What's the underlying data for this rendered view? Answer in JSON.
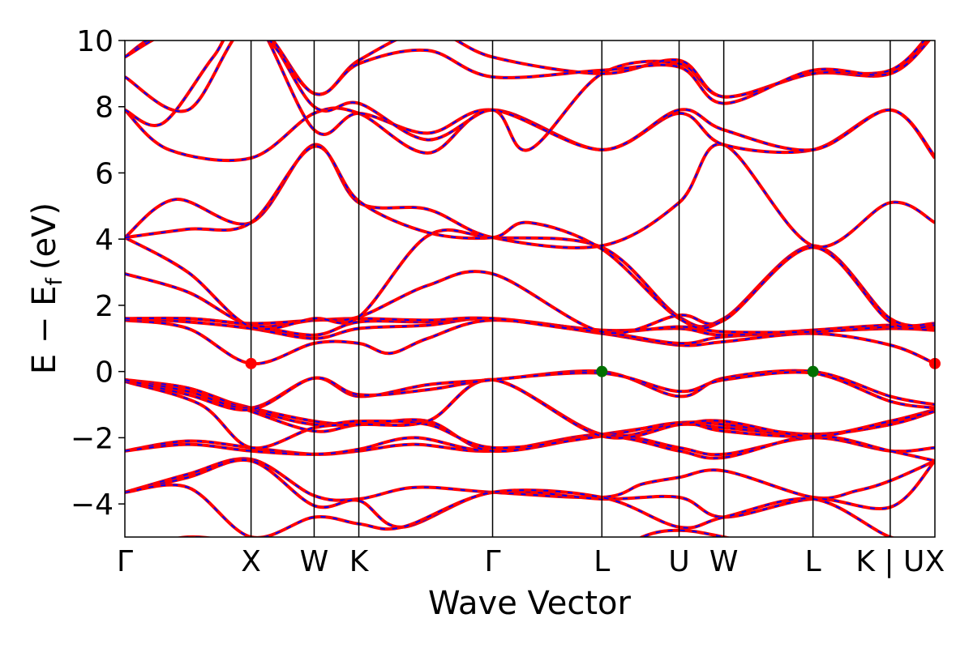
{
  "chart_data": {
    "type": "line",
    "xlabel": "Wave Vector",
    "ylabel": "E − E",
    "ylabel_subscript": "f",
    "ylabel_unit": "(eV)",
    "ylim": [
      -5,
      10
    ],
    "yticks": [
      -4,
      -2,
      0,
      2,
      4,
      6,
      8,
      10
    ],
    "ytick_labels": [
      "−4",
      "−2",
      "0",
      "2",
      "4",
      "6",
      "8",
      "10"
    ],
    "grid": false,
    "kpath": [
      {
        "label": "Γ",
        "x": 0.0
      },
      {
        "label": "X",
        "x": 1.0
      },
      {
        "label": "W",
        "x": 1.5
      },
      {
        "label": "K",
        "x": 1.854
      },
      {
        "label": "Γ",
        "x": 2.914
      },
      {
        "label": "L",
        "x": 3.78
      },
      {
        "label": "U",
        "x": 4.392
      },
      {
        "label": "W",
        "x": 4.746
      },
      {
        "label": "L",
        "x": 5.453
      },
      {
        "label": "K | U",
        "x": 6.065
      },
      {
        "label": "X",
        "x": 6.419
      }
    ],
    "xlim": [
      0,
      6.419
    ],
    "series_style": {
      "primary_color": "#ff0000",
      "overlay_color": "#0000ff"
    },
    "markers": [
      {
        "name": "CBM",
        "color": "#ff0000",
        "points": [
          [
            1.0,
            0.24
          ],
          [
            6.419,
            0.24
          ]
        ]
      },
      {
        "name": "VBM",
        "color": "#007000",
        "points": [
          [
            3.78,
            0.0
          ],
          [
            5.453,
            0.0
          ]
        ]
      }
    ],
    "bands": [
      [
        [
          0,
          -5.5
        ],
        [
          0.5,
          -5.0
        ],
        [
          1.0,
          -5.3
        ],
        [
          1.5,
          -5.9
        ],
        [
          1.854,
          -6.0
        ],
        [
          2.4,
          -6.0
        ],
        [
          2.914,
          -6.0
        ],
        [
          3.78,
          -5.8
        ],
        [
          4.1,
          -5.0
        ],
        [
          4.392,
          -4.8
        ],
        [
          4.746,
          -5.0
        ],
        [
          5.453,
          -5.6
        ],
        [
          6.065,
          -5.4
        ],
        [
          6.419,
          -5.1
        ]
      ],
      [
        [
          0,
          -3.65
        ],
        [
          0.5,
          -3.1
        ],
        [
          1.0,
          -2.65
        ],
        [
          1.5,
          -3.75
        ],
        [
          1.854,
          -3.85
        ],
        [
          2.3,
          -3.5
        ],
        [
          2.914,
          -3.65
        ],
        [
          3.78,
          -3.8
        ],
        [
          4.1,
          -3.4
        ],
        [
          4.392,
          -3.2
        ],
        [
          4.746,
          -3.0
        ],
        [
          5.453,
          -3.8
        ],
        [
          5.8,
          -3.6
        ],
        [
          6.065,
          -3.3
        ],
        [
          6.419,
          -2.7
        ]
      ],
      [
        [
          0,
          -3.65
        ],
        [
          0.5,
          -3.2
        ],
        [
          1.0,
          -2.7
        ],
        [
          1.5,
          -4.05
        ],
        [
          1.854,
          -3.9
        ],
        [
          2.2,
          -4.7
        ],
        [
          2.914,
          -3.65
        ],
        [
          3.78,
          -3.85
        ],
        [
          4.392,
          -3.8
        ],
        [
          4.746,
          -4.4
        ],
        [
          5.453,
          -3.85
        ],
        [
          6.065,
          -4.1
        ],
        [
          6.419,
          -2.7
        ]
      ],
      [
        [
          0,
          -3.65
        ],
        [
          0.5,
          -3.5
        ],
        [
          1.0,
          -5.0
        ],
        [
          1.5,
          -4.4
        ],
        [
          1.854,
          -4.6
        ],
        [
          2.2,
          -4.7
        ],
        [
          2.914,
          -3.65
        ],
        [
          3.78,
          -3.8
        ],
        [
          4.392,
          -4.7
        ],
        [
          4.746,
          -4.4
        ],
        [
          5.453,
          -3.85
        ],
        [
          6.065,
          -5.0
        ],
        [
          6.419,
          -5.2
        ]
      ],
      [
        [
          0,
          -2.4
        ],
        [
          0.5,
          -2.1
        ],
        [
          1.0,
          -2.3
        ],
        [
          1.5,
          -2.5
        ],
        [
          1.854,
          -2.4
        ],
        [
          2.3,
          -2.2
        ],
        [
          2.914,
          -2.4
        ],
        [
          3.78,
          -1.9
        ],
        [
          4.392,
          -2.3
        ],
        [
          4.746,
          -2.5
        ],
        [
          5.453,
          -2.0
        ],
        [
          6.065,
          -2.4
        ],
        [
          6.419,
          -2.3
        ]
      ],
      [
        [
          0,
          -2.4
        ],
        [
          0.5,
          -2.2
        ],
        [
          1.0,
          -2.4
        ],
        [
          1.5,
          -2.5
        ],
        [
          1.854,
          -2.35
        ],
        [
          2.3,
          -2.0
        ],
        [
          2.914,
          -2.4
        ],
        [
          3.78,
          -1.95
        ],
        [
          4.392,
          -2.4
        ],
        [
          4.746,
          -2.6
        ],
        [
          5.453,
          -1.95
        ],
        [
          6.065,
          -2.4
        ],
        [
          6.419,
          -2.7
        ]
      ],
      [
        [
          0,
          -0.25
        ],
        [
          0.5,
          -0.6
        ],
        [
          1.0,
          -1.1
        ],
        [
          1.5,
          -1.5
        ],
        [
          1.854,
          -1.6
        ],
        [
          2.4,
          -1.5
        ],
        [
          2.914,
          -2.4
        ],
        [
          3.78,
          -1.9
        ],
        [
          4.392,
          -1.6
        ],
        [
          4.746,
          -1.7
        ],
        [
          5.453,
          -1.9
        ],
        [
          6.065,
          -1.6
        ],
        [
          6.419,
          -1.2
        ]
      ],
      [
        [
          0,
          -0.25
        ],
        [
          0.5,
          -0.5
        ],
        [
          1.0,
          -1.15
        ],
        [
          1.5,
          -1.6
        ],
        [
          1.854,
          -1.5
        ],
        [
          2.4,
          -1.6
        ],
        [
          2.914,
          -2.3
        ],
        [
          3.78,
          -1.95
        ],
        [
          4.392,
          -1.55
        ],
        [
          4.746,
          -1.8
        ],
        [
          5.453,
          -1.95
        ],
        [
          6.065,
          -1.5
        ],
        [
          6.419,
          -1.15
        ]
      ],
      [
        [
          0,
          -0.3
        ],
        [
          0.5,
          -0.5
        ],
        [
          1.0,
          -1.2
        ],
        [
          1.5,
          -1.8
        ],
        [
          1.854,
          -1.6
        ],
        [
          2.4,
          -1.5
        ],
        [
          2.914,
          -0.25
        ],
        [
          3.78,
          -1.9
        ],
        [
          4.392,
          -1.55
        ],
        [
          4.746,
          -1.6
        ],
        [
          5.453,
          -1.9
        ],
        [
          6.065,
          -1.6
        ],
        [
          6.419,
          -1.2
        ]
      ],
      [
        [
          0,
          -0.3
        ],
        [
          0.6,
          -1.0
        ],
        [
          1.0,
          -2.3
        ],
        [
          1.5,
          -1.7
        ],
        [
          1.854,
          -1.6
        ],
        [
          2.4,
          -1.5
        ],
        [
          2.914,
          -0.25
        ],
        [
          3.78,
          -1.95
        ],
        [
          4.392,
          -1.6
        ],
        [
          4.746,
          -1.5
        ],
        [
          5.453,
          -1.95
        ],
        [
          6.065,
          -1.5
        ],
        [
          6.419,
          -1.2
        ]
      ],
      [
        [
          0,
          -0.25
        ],
        [
          0.5,
          -0.6
        ],
        [
          1.0,
          -1.1
        ],
        [
          1.5,
          -0.2
        ],
        [
          1.854,
          -0.75
        ],
        [
          2.4,
          -0.4
        ],
        [
          2.914,
          -0.25
        ],
        [
          3.78,
          0.0
        ],
        [
          4.392,
          -0.75
        ],
        [
          4.746,
          -0.2
        ],
        [
          5.453,
          0.0
        ],
        [
          6.065,
          -0.75
        ],
        [
          6.419,
          -1.0
        ]
      ],
      [
        [
          0,
          -0.25
        ],
        [
          0.5,
          -0.7
        ],
        [
          1.0,
          -1.15
        ],
        [
          1.5,
          -0.2
        ],
        [
          1.854,
          -0.7
        ],
        [
          2.4,
          -0.55
        ],
        [
          2.914,
          -0.25
        ],
        [
          3.78,
          -0.05
        ],
        [
          4.392,
          -0.6
        ],
        [
          4.746,
          -0.25
        ],
        [
          5.453,
          -0.05
        ],
        [
          6.065,
          -0.9
        ],
        [
          6.419,
          -1.1
        ]
      ],
      [
        [
          0,
          1.55
        ],
        [
          0.5,
          1.3
        ],
        [
          1.0,
          0.24
        ],
        [
          1.5,
          0.85
        ],
        [
          1.854,
          0.85
        ],
        [
          2.1,
          0.55
        ],
        [
          2.4,
          1.0
        ],
        [
          2.914,
          1.55
        ],
        [
          3.78,
          1.15
        ],
        [
          4.392,
          0.8
        ],
        [
          4.746,
          0.9
        ],
        [
          5.453,
          1.15
        ],
        [
          6.065,
          0.8
        ],
        [
          6.419,
          0.24
        ]
      ],
      [
        [
          0,
          1.6
        ],
        [
          0.5,
          1.5
        ],
        [
          1.0,
          1.3
        ],
        [
          1.5,
          1.0
        ],
        [
          1.854,
          1.3
        ],
        [
          2.4,
          1.4
        ],
        [
          2.914,
          1.6
        ],
        [
          3.78,
          1.2
        ],
        [
          4.392,
          0.85
        ],
        [
          4.746,
          1.05
        ],
        [
          5.453,
          1.2
        ],
        [
          6.065,
          1.3
        ],
        [
          6.419,
          1.25
        ]
      ],
      [
        [
          0,
          1.55
        ],
        [
          0.5,
          1.6
        ],
        [
          1.0,
          1.4
        ],
        [
          1.5,
          1.1
        ],
        [
          1.854,
          1.5
        ],
        [
          2.4,
          1.5
        ],
        [
          2.914,
          1.6
        ],
        [
          3.78,
          1.25
        ],
        [
          4.392,
          1.3
        ],
        [
          4.746,
          1.1
        ],
        [
          5.453,
          1.25
        ],
        [
          6.065,
          1.4
        ],
        [
          6.419,
          1.3
        ]
      ],
      [
        [
          0,
          1.6
        ],
        [
          0.5,
          1.6
        ],
        [
          1.0,
          1.45
        ],
        [
          1.5,
          1.55
        ],
        [
          1.854,
          1.6
        ],
        [
          2.4,
          1.55
        ],
        [
          2.914,
          1.6
        ],
        [
          3.78,
          1.2
        ],
        [
          4.392,
          1.35
        ],
        [
          4.746,
          1.2
        ],
        [
          5.453,
          1.2
        ],
        [
          6.065,
          1.35
        ],
        [
          6.419,
          1.35
        ]
      ],
      [
        [
          0,
          2.95
        ],
        [
          0.5,
          2.4
        ],
        [
          1.0,
          1.4
        ],
        [
          1.5,
          1.55
        ],
        [
          1.854,
          1.65
        ],
        [
          2.4,
          2.6
        ],
        [
          2.914,
          2.95
        ],
        [
          3.78,
          1.2
        ],
        [
          4.392,
          1.7
        ],
        [
          4.746,
          1.55
        ],
        [
          5.453,
          3.75
        ],
        [
          6.065,
          1.55
        ],
        [
          6.419,
          1.4
        ]
      ],
      [
        [
          0,
          4.05
        ],
        [
          0.5,
          3.0
        ],
        [
          1.0,
          1.35
        ],
        [
          1.5,
          1.6
        ],
        [
          1.854,
          1.65
        ],
        [
          2.4,
          4.1
        ],
        [
          2.914,
          4.05
        ],
        [
          3.78,
          3.75
        ],
        [
          4.392,
          1.65
        ],
        [
          4.746,
          1.6
        ],
        [
          5.453,
          3.8
        ],
        [
          6.065,
          1.6
        ],
        [
          6.419,
          1.45
        ]
      ],
      [
        [
          0,
          4.05
        ],
        [
          0.4,
          5.2
        ],
        [
          1.0,
          4.5
        ],
        [
          1.5,
          6.85
        ],
        [
          1.854,
          5.1
        ],
        [
          2.4,
          4.9
        ],
        [
          2.914,
          4.05
        ],
        [
          3.78,
          3.8
        ],
        [
          4.392,
          5.1
        ],
        [
          4.746,
          6.85
        ],
        [
          5.453,
          3.8
        ],
        [
          6.065,
          5.1
        ],
        [
          6.419,
          4.5
        ]
      ],
      [
        [
          0,
          4.05
        ],
        [
          0.5,
          4.3
        ],
        [
          1.0,
          4.5
        ],
        [
          1.5,
          6.8
        ],
        [
          1.854,
          5.15
        ],
        [
          2.4,
          4.2
        ],
        [
          2.914,
          4.05
        ],
        [
          3.2,
          4.5
        ],
        [
          3.78,
          3.7
        ],
        [
          4.392,
          1.6
        ],
        [
          4.746,
          1.55
        ],
        [
          5.453,
          3.75
        ],
        [
          6.065,
          1.5
        ],
        [
          6.419,
          1.4
        ]
      ],
      [
        [
          0,
          7.9
        ],
        [
          0.35,
          6.7
        ],
        [
          1.0,
          6.45
        ],
        [
          1.5,
          7.8
        ],
        [
          1.854,
          7.8
        ],
        [
          2.4,
          6.6
        ],
        [
          2.914,
          7.9
        ],
        [
          3.78,
          6.7
        ],
        [
          4.392,
          7.8
        ],
        [
          4.746,
          6.85
        ],
        [
          5.453,
          6.7
        ],
        [
          6.065,
          7.9
        ],
        [
          6.419,
          6.45
        ]
      ],
      [
        [
          0,
          7.9
        ],
        [
          0.3,
          7.5
        ],
        [
          0.7,
          9.5
        ],
        [
          1.0,
          10.8
        ],
        [
          1.5,
          7.3
        ],
        [
          1.854,
          7.8
        ],
        [
          2.4,
          7.2
        ],
        [
          2.914,
          7.9
        ],
        [
          3.78,
          6.7
        ],
        [
          4.392,
          7.9
        ],
        [
          4.746,
          7.3
        ],
        [
          5.453,
          6.7
        ],
        [
          6.065,
          7.9
        ],
        [
          6.419,
          6.5
        ]
      ],
      [
        [
          0,
          8.9
        ],
        [
          0.5,
          7.9
        ],
        [
          1.0,
          10.5
        ],
        [
          1.5,
          8.0
        ],
        [
          1.854,
          8.1
        ],
        [
          2.4,
          7.0
        ],
        [
          2.914,
          7.9
        ],
        [
          3.2,
          6.7
        ],
        [
          3.78,
          9.0
        ],
        [
          4.392,
          9.3
        ],
        [
          4.746,
          8.3
        ],
        [
          5.453,
          9.0
        ],
        [
          6.065,
          9.0
        ],
        [
          6.419,
          10.3
        ]
      ],
      [
        [
          0,
          9.5
        ],
        [
          0.3,
          10.2
        ],
        [
          1.0,
          10.6
        ],
        [
          1.5,
          8.4
        ],
        [
          1.854,
          9.4
        ],
        [
          2.4,
          10.3
        ],
        [
          2.914,
          9.5
        ],
        [
          3.78,
          9.0
        ],
        [
          4.392,
          9.4
        ],
        [
          4.746,
          8.3
        ],
        [
          5.453,
          9.0
        ],
        [
          6.065,
          9.1
        ],
        [
          6.419,
          10.4
        ]
      ],
      [
        [
          0,
          9.5
        ],
        [
          0.4,
          10.3
        ],
        [
          1.0,
          10.5
        ],
        [
          1.5,
          8.4
        ],
        [
          1.854,
          9.3
        ],
        [
          2.4,
          9.7
        ],
        [
          2.914,
          8.9
        ],
        [
          3.78,
          9.1
        ],
        [
          4.392,
          9.2
        ],
        [
          4.746,
          8.1
        ],
        [
          5.453,
          9.1
        ],
        [
          6.065,
          9.0
        ],
        [
          6.419,
          10.2
        ]
      ]
    ]
  }
}
